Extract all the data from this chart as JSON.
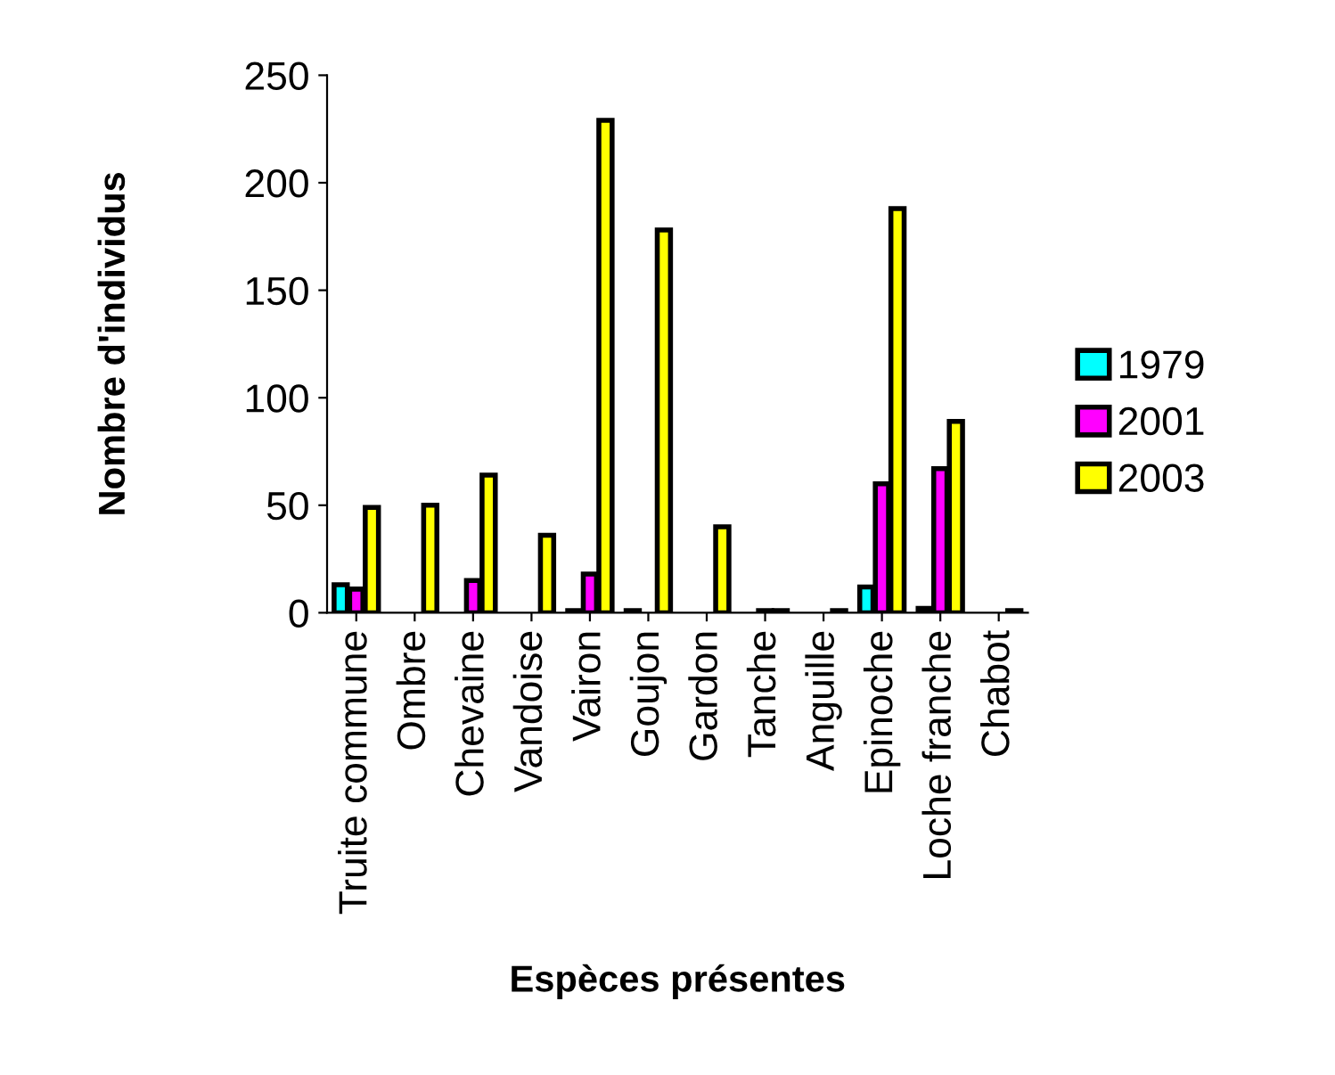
{
  "chart_data": {
    "type": "bar",
    "xlabel": "Espèces présentes",
    "ylabel": "Nombre d'individus",
    "categories": [
      "Truite commune",
      "Ombre",
      "Chevaine",
      "Vandoise",
      "Vairon",
      "Goujon",
      "Gardon",
      "Tanche",
      "Anguille",
      "Epinoche",
      "Loche franche",
      "Chabot"
    ],
    "series": [
      {
        "name": "1979",
        "color": "#00ffff",
        "values": [
          13,
          null,
          null,
          null,
          1,
          1,
          null,
          null,
          null,
          12,
          2,
          null
        ]
      },
      {
        "name": "2001",
        "color": "#ff00ff",
        "values": [
          11,
          null,
          15,
          null,
          18,
          null,
          null,
          1,
          null,
          60,
          67,
          null
        ]
      },
      {
        "name": "2003",
        "color": "#ffff00",
        "values": [
          49,
          50,
          64,
          36,
          229,
          178,
          40,
          1,
          1,
          188,
          89,
          1
        ]
      }
    ],
    "ylim": [
      0,
      250
    ],
    "yticks": [
      0,
      50,
      100,
      150,
      200,
      250
    ],
    "grid": false,
    "legend": "right"
  }
}
